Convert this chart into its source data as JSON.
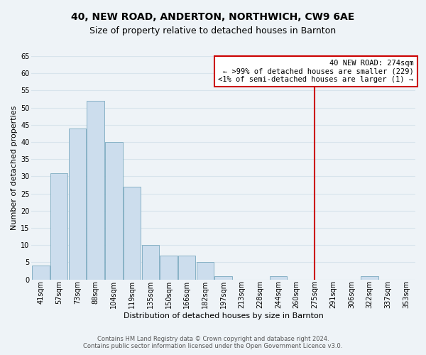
{
  "title": "40, NEW ROAD, ANDERTON, NORTHWICH, CW9 6AE",
  "subtitle": "Size of property relative to detached houses in Barnton",
  "xlabel": "Distribution of detached houses by size in Barnton",
  "ylabel": "Number of detached properties",
  "footer_line1": "Contains HM Land Registry data © Crown copyright and database right 2024.",
  "footer_line2": "Contains public sector information licensed under the Open Government Licence v3.0.",
  "bin_labels": [
    "41sqm",
    "57sqm",
    "73sqm",
    "88sqm",
    "104sqm",
    "119sqm",
    "135sqm",
    "150sqm",
    "166sqm",
    "182sqm",
    "197sqm",
    "213sqm",
    "228sqm",
    "244sqm",
    "260sqm",
    "275sqm",
    "291sqm",
    "306sqm",
    "322sqm",
    "337sqm",
    "353sqm"
  ],
  "bar_values": [
    4,
    31,
    44,
    52,
    40,
    27,
    10,
    7,
    7,
    5,
    1,
    0,
    0,
    1,
    0,
    0,
    0,
    0,
    1,
    0,
    0
  ],
  "bar_color": "#ccdded",
  "bar_edge_color": "#7aaabf",
  "grid_color": "#d8e4ec",
  "marker_line_color": "#cc0000",
  "annotation_line1": "40 NEW ROAD: 274sqm",
  "annotation_line2": "← >99% of detached houses are smaller (229)",
  "annotation_line3": "<1% of semi-detached houses are larger (1) →",
  "annotation_box_edge_color": "#cc0000",
  "ylim": [
    0,
    65
  ],
  "yticks": [
    0,
    5,
    10,
    15,
    20,
    25,
    30,
    35,
    40,
    45,
    50,
    55,
    60,
    65
  ],
  "background_color": "#eef3f7",
  "plot_background_color": "#eef3f7",
  "title_fontsize": 10,
  "subtitle_fontsize": 9,
  "axis_label_fontsize": 8,
  "tick_fontsize": 7,
  "annotation_fontsize": 7.5,
  "footer_fontsize": 6
}
